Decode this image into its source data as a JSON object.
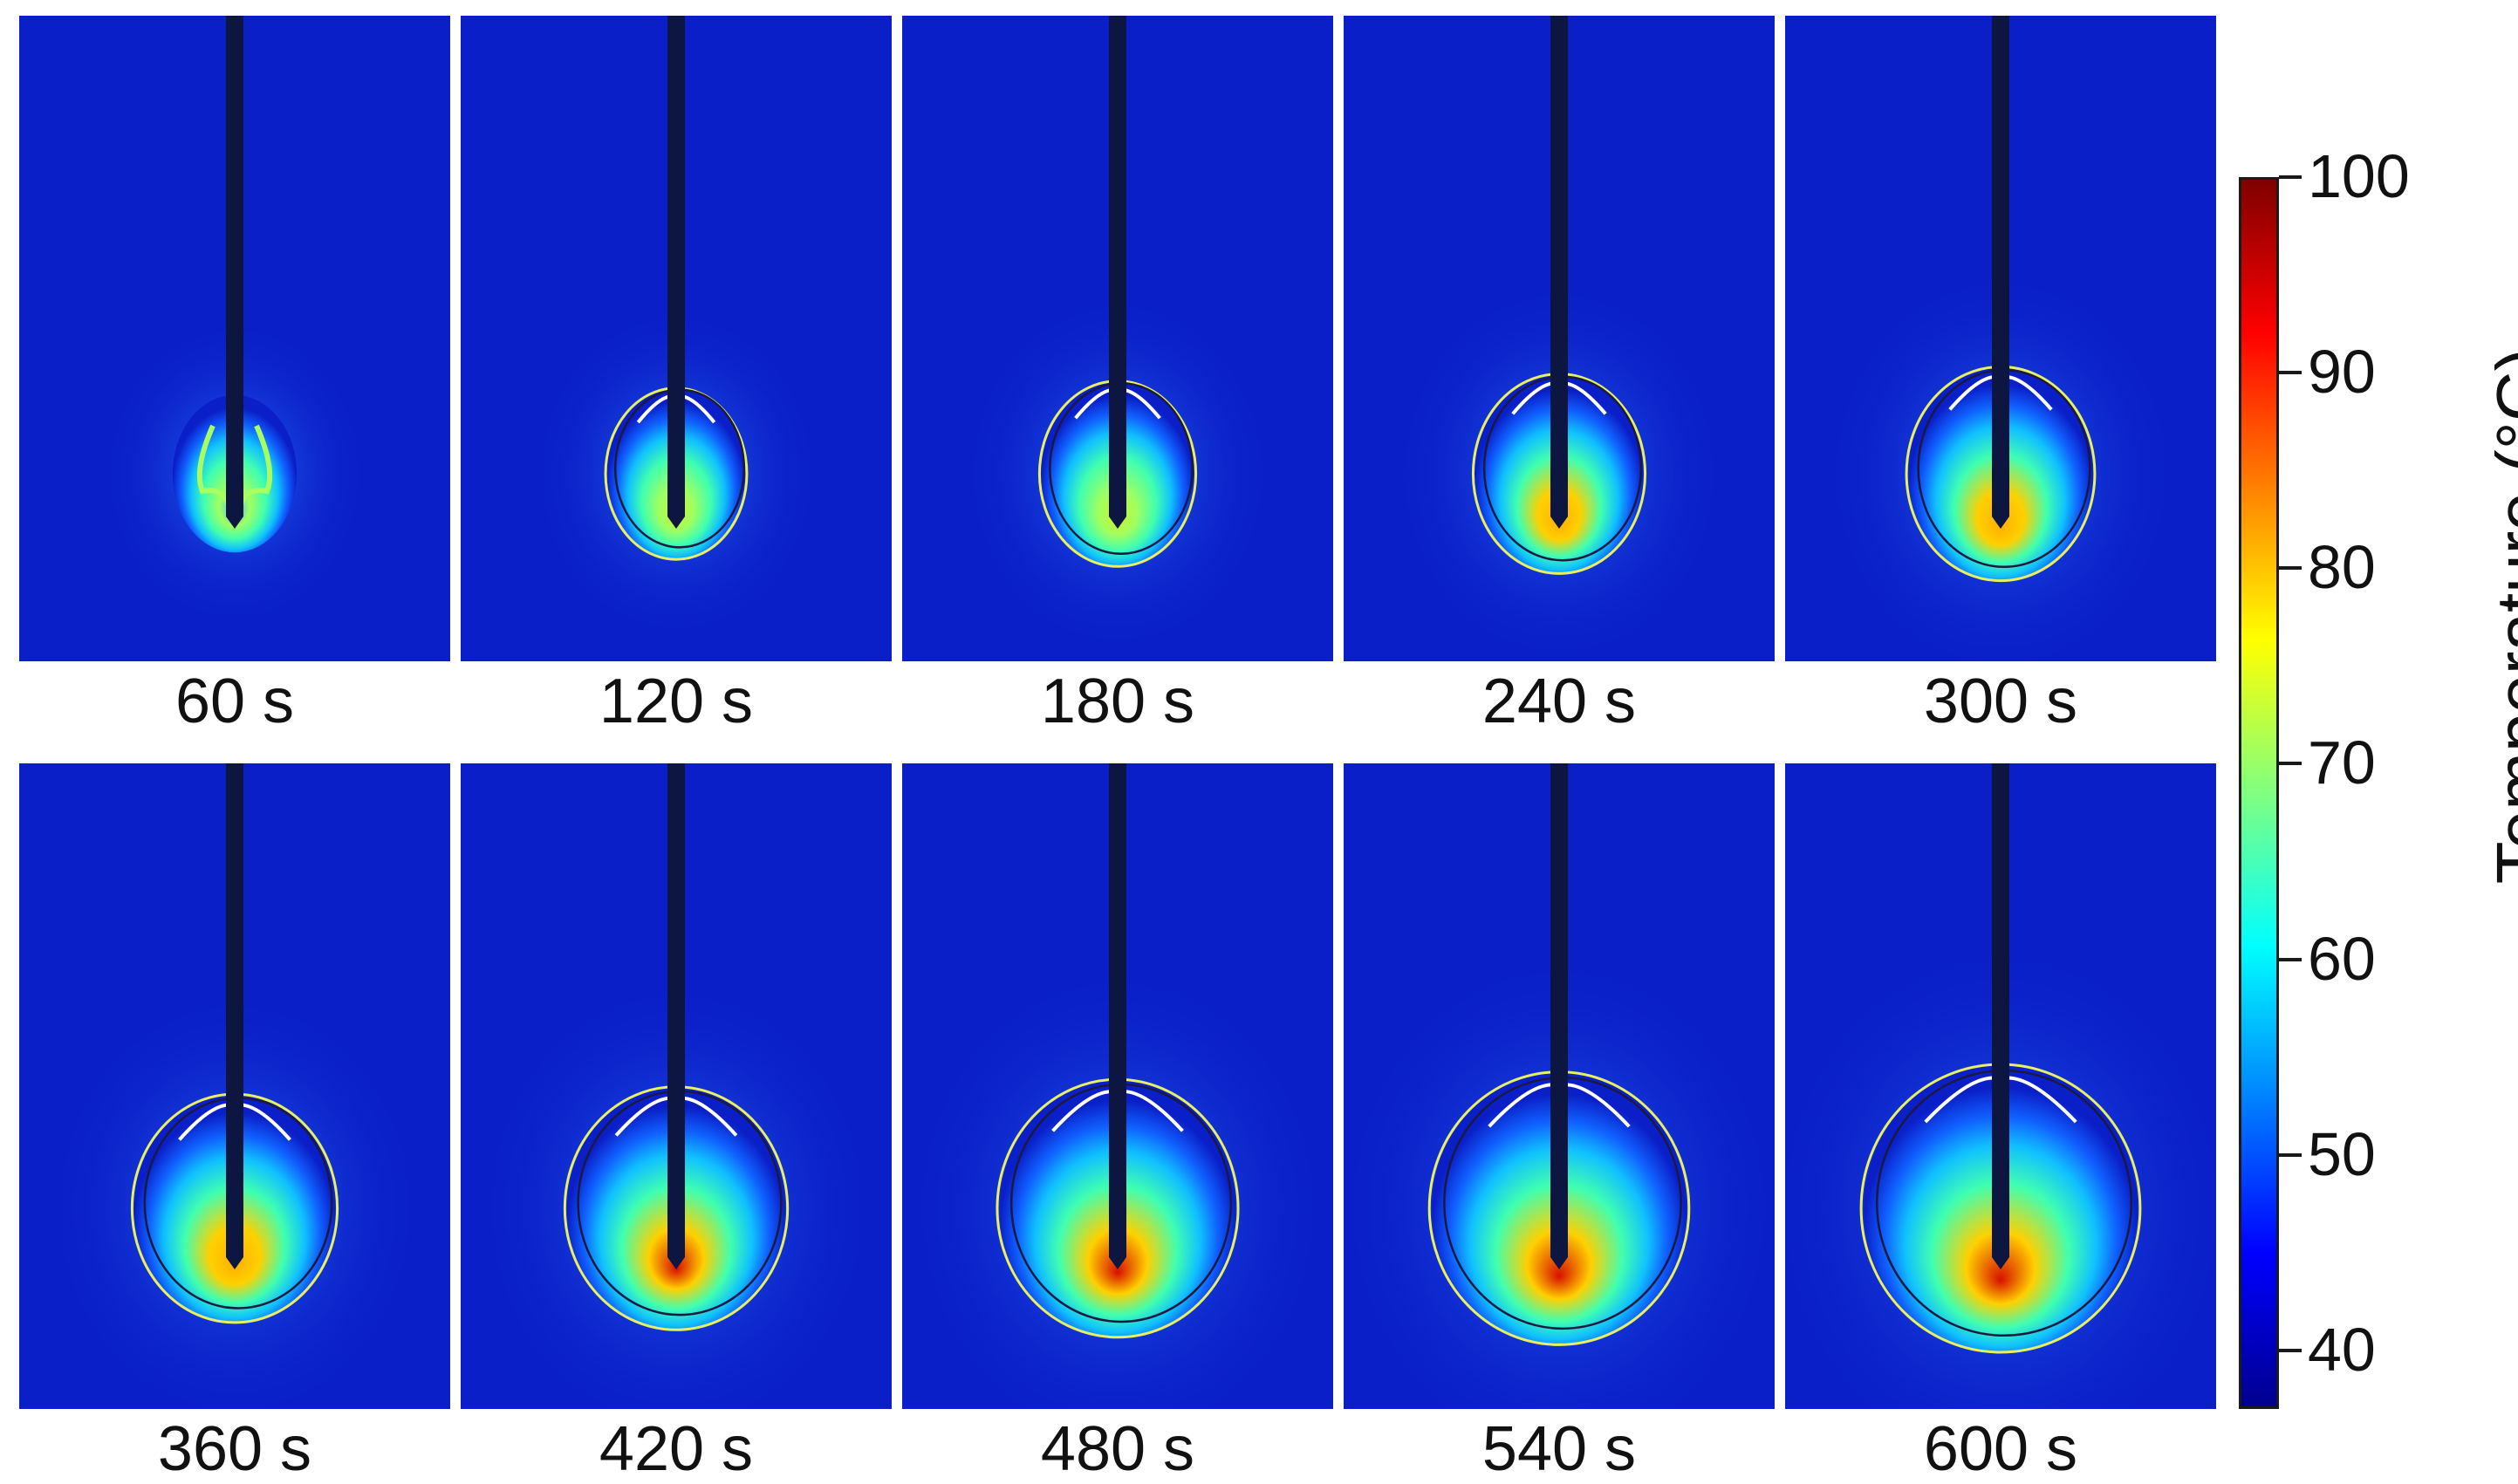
{
  "panels": [
    {
      "label": "60 s",
      "time": 60
    },
    {
      "label": "120 s",
      "time": 120
    },
    {
      "label": "180 s",
      "time": 180
    },
    {
      "label": "240 s",
      "time": 240
    },
    {
      "label": "300 s",
      "time": 300
    },
    {
      "label": "360 s",
      "time": 360
    },
    {
      "label": "420 s",
      "time": 420
    },
    {
      "label": "480 s",
      "time": 480
    },
    {
      "label": "540 s",
      "time": 540
    },
    {
      "label": "600 s",
      "time": 600
    }
  ],
  "colorbar": {
    "title": "Temperature (°C)",
    "min": 37,
    "max": 100,
    "ticks": [
      "100",
      "90",
      "80",
      "70",
      "60",
      "50",
      "40"
    ],
    "tick_values": [
      100,
      90,
      80,
      70,
      60,
      50,
      40
    ],
    "colors": [
      "#00008f",
      "#0000ff",
      "#0080ff",
      "#00ffff",
      "#80ff80",
      "#ffff00",
      "#ff8000",
      "#ff0000",
      "#800000"
    ]
  },
  "colors": {
    "background_field": "#0a1fc8",
    "probe": "#0d1640",
    "isotherm_white": "#ffffff",
    "isotherm_yellow": "#e8f060",
    "isotherm_dark": "#1a1a40"
  }
}
